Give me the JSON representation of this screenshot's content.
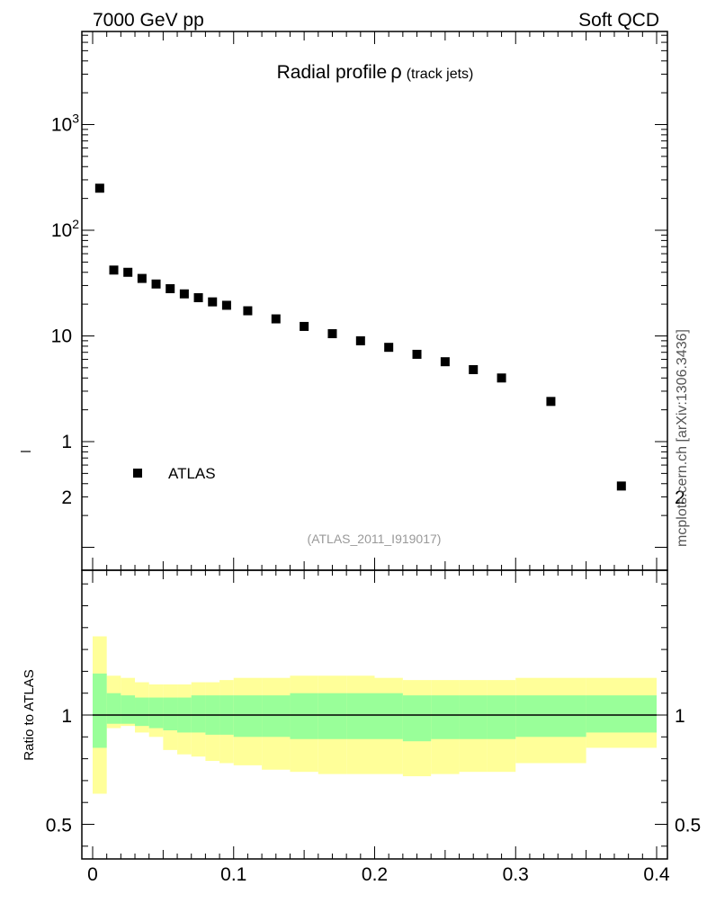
{
  "header": {
    "left": "7000 GeV pp",
    "right": "Soft QCD"
  },
  "side_label": "mcplots.cern.ch [arXiv:1306.3436]",
  "colors": {
    "marker": "#000000",
    "band_outer": "#ffff99",
    "band_inner": "#99ff99",
    "id_text": "#999999"
  },
  "chart_data": [
    {
      "type": "scatter",
      "title": "Radial profile",
      "title_symbol": "ρ",
      "title_suffix": "(track jets)",
      "analysis_id": "(ATLAS_2011_I919017)",
      "yscale": "log",
      "xlim": [
        0,
        0.4
      ],
      "ylim": [
        0.1,
        8000
      ],
      "y_tick_labels": [
        "1",
        "10",
        "10",
        "10"
      ],
      "y_tick_exponents": [
        "",
        "",
        "2",
        "3"
      ],
      "legend": {
        "placement": "bottom-left",
        "entries": [
          "ATLAS"
        ]
      },
      "series": [
        {
          "name": "ATLAS",
          "x": [
            0.005,
            0.015,
            0.025,
            0.035,
            0.045,
            0.055,
            0.065,
            0.075,
            0.085,
            0.095,
            0.11,
            0.13,
            0.15,
            0.17,
            0.19,
            0.21,
            0.23,
            0.25,
            0.27,
            0.29,
            0.325,
            0.375
          ],
          "y": [
            250,
            42,
            40,
            35,
            31,
            28,
            25,
            23,
            21,
            19.5,
            17.3,
            14.5,
            12.3,
            10.5,
            9.0,
            7.8,
            6.7,
            5.7,
            4.8,
            4.0,
            2.4,
            0.38
          ]
        }
      ]
    },
    {
      "type": "area",
      "ylabel": "Ratio to ATLAS",
      "xlim": [
        0,
        0.4
      ],
      "ylim": [
        0.35,
        2.35
      ],
      "x_ticks": [
        0,
        0.1,
        0.2,
        0.3,
        0.4
      ],
      "x_tick_labels": [
        "0",
        "0.1",
        "0.2",
        "0.3",
        "0.4"
      ],
      "y_ticks": [
        0.5,
        1,
        2
      ],
      "y_tick_labels": [
        "0.5",
        "1",
        "2"
      ],
      "reference_line": 1,
      "bin_edges": [
        0,
        0.01,
        0.02,
        0.03,
        0.04,
        0.05,
        0.06,
        0.07,
        0.08,
        0.09,
        0.1,
        0.12,
        0.14,
        0.16,
        0.18,
        0.2,
        0.22,
        0.24,
        0.26,
        0.28,
        0.3,
        0.35,
        0.4
      ],
      "bands": [
        {
          "name": "total uncertainty",
          "lower": [
            0.64,
            0.94,
            0.95,
            0.92,
            0.9,
            0.84,
            0.82,
            0.81,
            0.79,
            0.78,
            0.77,
            0.75,
            0.74,
            0.73,
            0.73,
            0.73,
            0.72,
            0.73,
            0.74,
            0.74,
            0.78,
            0.85
          ],
          "upper": [
            1.36,
            1.18,
            1.17,
            1.15,
            1.14,
            1.14,
            1.14,
            1.15,
            1.15,
            1.16,
            1.17,
            1.17,
            1.18,
            1.18,
            1.18,
            1.17,
            1.16,
            1.16,
            1.16,
            1.16,
            1.17,
            1.17
          ]
        },
        {
          "name": "statistical uncertainty",
          "lower": [
            0.85,
            0.96,
            0.96,
            0.95,
            0.94,
            0.93,
            0.92,
            0.92,
            0.91,
            0.91,
            0.9,
            0.9,
            0.89,
            0.89,
            0.89,
            0.89,
            0.88,
            0.89,
            0.89,
            0.89,
            0.9,
            0.92
          ],
          "upper": [
            1.19,
            1.1,
            1.09,
            1.08,
            1.08,
            1.08,
            1.08,
            1.09,
            1.09,
            1.09,
            1.09,
            1.09,
            1.1,
            1.1,
            1.1,
            1.1,
            1.09,
            1.09,
            1.09,
            1.09,
            1.09,
            1.09
          ]
        }
      ]
    }
  ]
}
